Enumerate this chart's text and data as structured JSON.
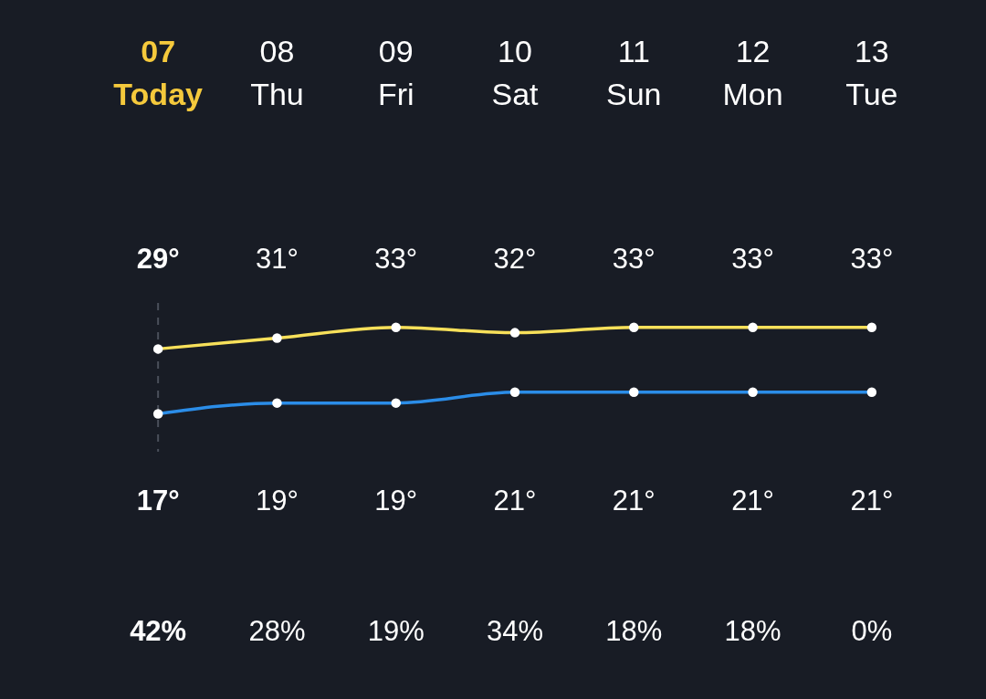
{
  "chart_data": {
    "type": "line",
    "categories": [
      "07\nToday",
      "08\nThu",
      "09\nFri",
      "10\nSat",
      "11\nSun",
      "12\nMon",
      "13\nTue"
    ],
    "series": [
      {
        "color": "#f7e05a",
        "values": [
          29,
          31,
          33,
          32,
          33,
          33,
          33
        ],
        "value_labels": [
          "29°",
          "31°",
          "33°",
          "32°",
          "33°",
          "33°",
          "33°"
        ]
      },
      {
        "color": "#2b8de8",
        "values": [
          17,
          19,
          19,
          21,
          21,
          21,
          21
        ],
        "value_labels": [
          "17°",
          "19°",
          "19°",
          "21°",
          "21°",
          "21°",
          "21°"
        ]
      }
    ],
    "ylim": [
      10,
      37.5
    ],
    "tick_labels": "x",
    "marker": "circle",
    "line_style": "solid",
    "ref_lines": [
      {
        "axis": "x",
        "value": "07\nToday",
        "color": "#4a4f5a",
        "line_style": "dashed"
      }
    ],
    "annotations": [
      "42%",
      "28%",
      "19%",
      "34%",
      "18%",
      "18%",
      "0%"
    ]
  }
}
